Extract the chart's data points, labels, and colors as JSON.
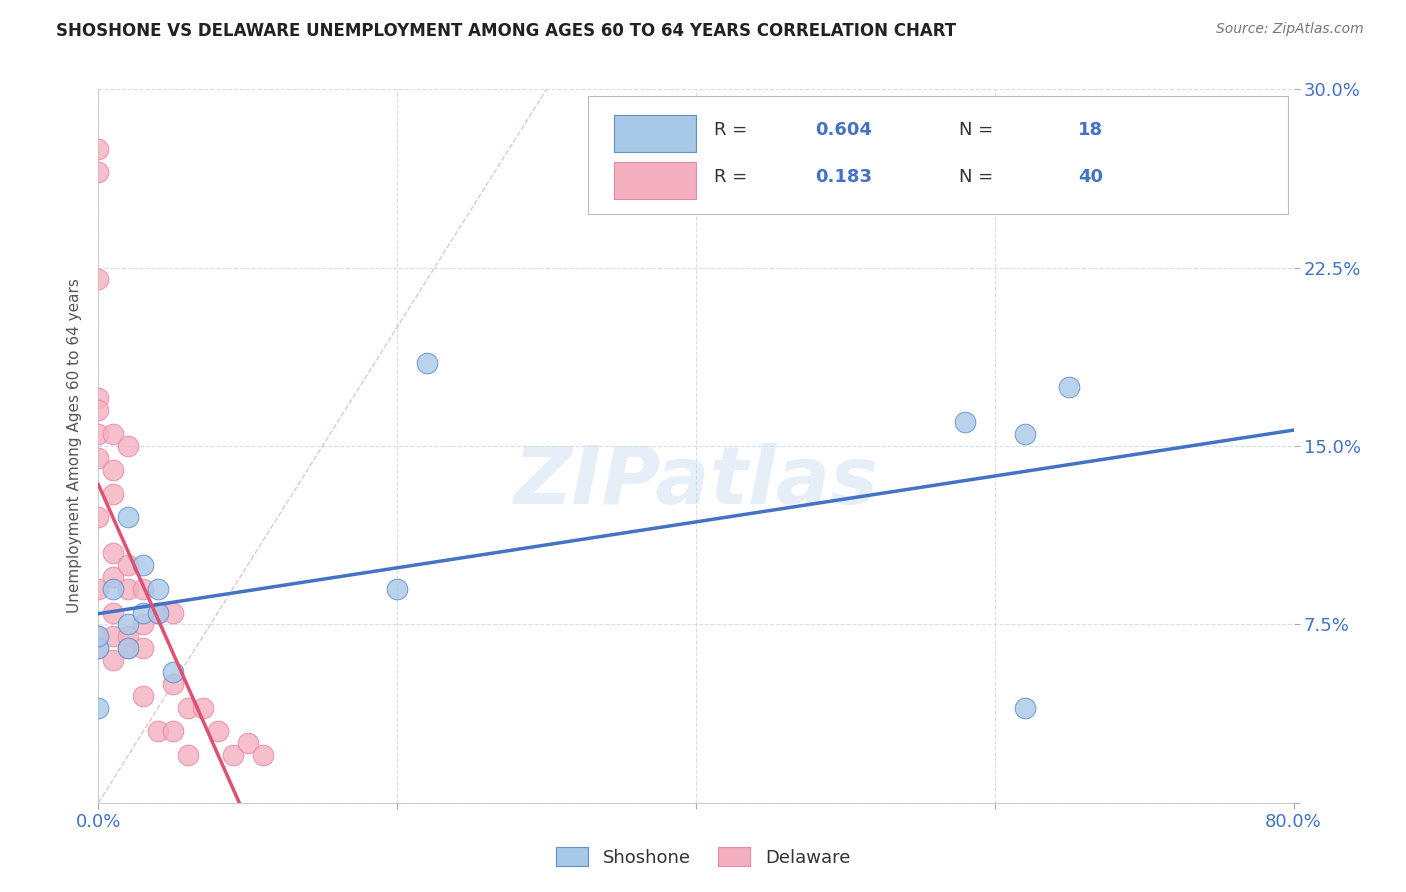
{
  "title": "SHOSHONE VS DELAWARE UNEMPLOYMENT AMONG AGES 60 TO 64 YEARS CORRELATION CHART",
  "source": "Source: ZipAtlas.com",
  "ylabel": "Unemployment Among Ages 60 to 64 years",
  "xlim": [
    0,
    0.8
  ],
  "ylim": [
    0,
    0.3
  ],
  "xtick_pos": [
    0.0,
    0.2,
    0.4,
    0.6,
    0.8
  ],
  "xtick_labels": [
    "0.0%",
    "",
    "",
    "",
    "80.0%"
  ],
  "ytick_pos": [
    0.0,
    0.075,
    0.15,
    0.225,
    0.3
  ],
  "ytick_labels_right": [
    "",
    "7.5%",
    "15.0%",
    "22.5%",
    "30.0%"
  ],
  "shoshone_color": "#a8c8e8",
  "delaware_color": "#f4b0c0",
  "shoshone_R": 0.604,
  "shoshone_N": 18,
  "delaware_R": 0.183,
  "delaware_N": 40,
  "watermark": "ZIPatlas",
  "trend_color_shoshone": "#4472c4",
  "trend_color_delaware": "#e05070",
  "diag_color": "#d0a0b0",
  "shoshone_x": [
    0.0,
    0.0,
    0.0,
    0.01,
    0.02,
    0.02,
    0.02,
    0.03,
    0.03,
    0.04,
    0.04,
    0.05,
    0.2,
    0.22,
    0.58,
    0.62,
    0.62,
    0.65
  ],
  "shoshone_y": [
    0.065,
    0.07,
    0.04,
    0.09,
    0.065,
    0.075,
    0.12,
    0.08,
    0.1,
    0.09,
    0.08,
    0.055,
    0.09,
    0.185,
    0.16,
    0.155,
    0.04,
    0.175
  ],
  "delaware_x": [
    0.0,
    0.0,
    0.0,
    0.0,
    0.0,
    0.0,
    0.0,
    0.0,
    0.0,
    0.0,
    0.0,
    0.01,
    0.01,
    0.01,
    0.01,
    0.01,
    0.01,
    0.01,
    0.01,
    0.02,
    0.02,
    0.02,
    0.02,
    0.02,
    0.03,
    0.03,
    0.03,
    0.03,
    0.04,
    0.04,
    0.05,
    0.05,
    0.05,
    0.06,
    0.06,
    0.07,
    0.08,
    0.09,
    0.1,
    0.11
  ],
  "delaware_y": [
    0.275,
    0.265,
    0.22,
    0.17,
    0.165,
    0.155,
    0.145,
    0.12,
    0.09,
    0.07,
    0.065,
    0.155,
    0.14,
    0.13,
    0.105,
    0.095,
    0.08,
    0.07,
    0.06,
    0.15,
    0.1,
    0.09,
    0.07,
    0.065,
    0.09,
    0.075,
    0.065,
    0.045,
    0.08,
    0.03,
    0.08,
    0.05,
    0.03,
    0.04,
    0.02,
    0.04,
    0.03,
    0.02,
    0.025,
    0.02
  ]
}
